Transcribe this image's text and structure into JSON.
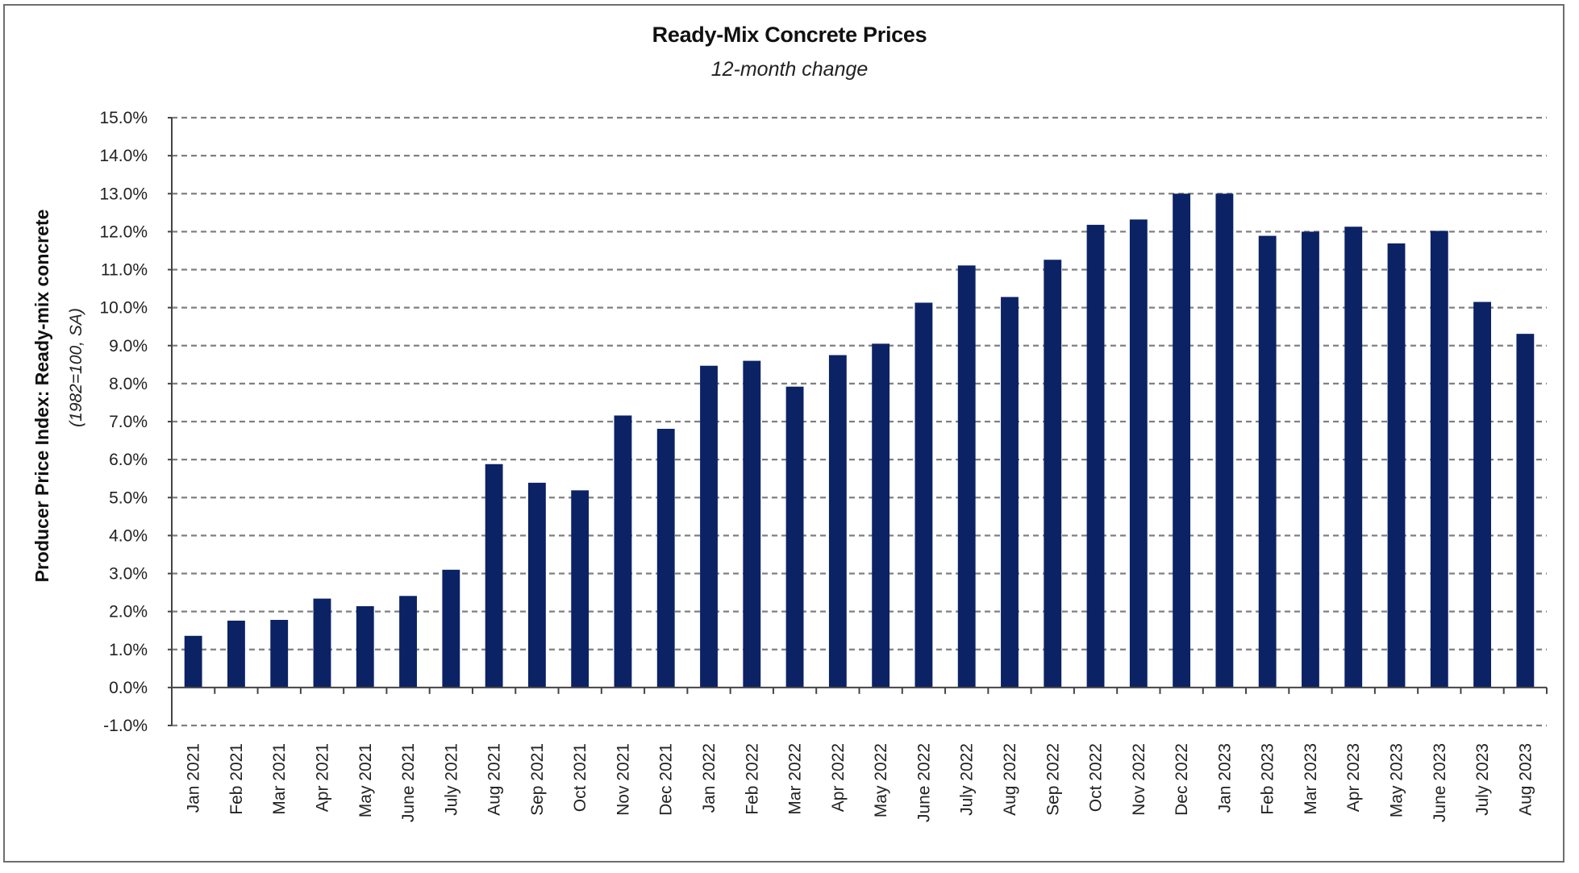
{
  "chart_data": {
    "type": "bar",
    "title": "Ready-Mix Concrete Prices",
    "subtitle": "12-month change",
    "xlabel": "",
    "ylabel": "Producer Price Index: Ready-mix concrete",
    "ylabel_sub": "(1982=100, SA)",
    "ylim": [
      -1.0,
      15.0
    ],
    "ytick_step": 1.0,
    "ytick_labels": [
      "-1.0%",
      "0.0%",
      "1.0%",
      "2.0%",
      "3.0%",
      "4.0%",
      "5.0%",
      "6.0%",
      "7.0%",
      "8.0%",
      "9.0%",
      "10.0%",
      "11.0%",
      "12.0%",
      "13.0%",
      "14.0%",
      "15.0%"
    ],
    "grid": true,
    "legend": "none",
    "bar_color": "#0b2265",
    "grid_color": "#808080",
    "categories": [
      "Jan 2021",
      "Feb 2021",
      "Mar 2021",
      "Apr 2021",
      "May 2021",
      "June 2021",
      "July 2021",
      "Aug 2021",
      "Sep 2021",
      "Oct 2021",
      "Nov 2021",
      "Dec 2021",
      "Jan 2022",
      "Feb 2022",
      "Mar 2022",
      "Apr 2022",
      "May 2022",
      "June 2022",
      "July 2022",
      "Aug 2022",
      "Sep 2022",
      "Oct 2022",
      "Nov 2022",
      "Dec 2022",
      "Jan 2023",
      "Feb 2023",
      "Mar 2023",
      "Apr 2023",
      "May 2023",
      "June 2023",
      "July 2023",
      "Aug 2023"
    ],
    "values": [
      1.36,
      1.76,
      1.78,
      2.34,
      2.14,
      2.41,
      3.1,
      5.88,
      5.39,
      5.19,
      7.16,
      6.81,
      8.47,
      8.6,
      7.92,
      8.75,
      9.05,
      10.13,
      11.11,
      10.28,
      11.26,
      12.18,
      12.32,
      13.0,
      13.0,
      11.89,
      12.0,
      12.13,
      11.69,
      12.02,
      10.15,
      9.31
    ]
  }
}
